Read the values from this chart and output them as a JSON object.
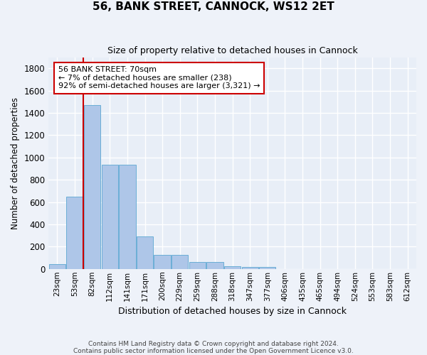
{
  "title": "56, BANK STREET, CANNOCK, WS12 2ET",
  "subtitle": "Size of property relative to detached houses in Cannock",
  "xlabel": "Distribution of detached houses by size in Cannock",
  "ylabel": "Number of detached properties",
  "categories": [
    "23sqm",
    "53sqm",
    "82sqm",
    "112sqm",
    "141sqm",
    "171sqm",
    "200sqm",
    "229sqm",
    "259sqm",
    "288sqm",
    "318sqm",
    "347sqm",
    "377sqm",
    "406sqm",
    "435sqm",
    "465sqm",
    "494sqm",
    "524sqm",
    "553sqm",
    "583sqm",
    "612sqm"
  ],
  "values": [
    40,
    650,
    1470,
    935,
    935,
    290,
    125,
    125,
    60,
    60,
    25,
    15,
    15,
    0,
    0,
    0,
    0,
    0,
    0,
    0,
    0
  ],
  "bar_color": "#aec6e8",
  "bar_edge_color": "#6baed6",
  "vline_x": 1.5,
  "vline_color": "#cc0000",
  "annotation_text": "56 BANK STREET: 70sqm\n← 7% of detached houses are smaller (238)\n92% of semi-detached houses are larger (3,321) →",
  "annotation_box_color": "#ffffff",
  "annotation_box_edge": "#cc0000",
  "ylim": [
    0,
    1900
  ],
  "yticks": [
    0,
    200,
    400,
    600,
    800,
    1000,
    1200,
    1400,
    1600,
    1800
  ],
  "bg_color": "#e8eef7",
  "grid_color": "#ffffff",
  "footer1": "Contains HM Land Registry data © Crown copyright and database right 2024.",
  "footer2": "Contains public sector information licensed under the Open Government Licence v3.0.",
  "fig_bg": "#eef2f9"
}
